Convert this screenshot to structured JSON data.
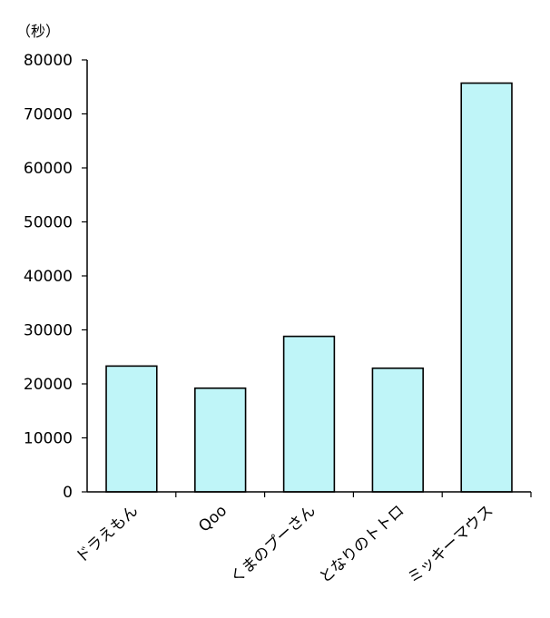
{
  "chart_data": {
    "type": "bar",
    "title": "",
    "xlabel": "",
    "ylabel": "",
    "unit_label": "（秒）",
    "categories": [
      "ドラえもん",
      "Qoo",
      "くまのプーさん",
      "となりのトトロ",
      "ミッキーマウス"
    ],
    "values": [
      23300,
      19200,
      28800,
      22900,
      75700
    ],
    "ylim": [
      0,
      80000
    ],
    "yticks": [
      0,
      10000,
      20000,
      30000,
      40000,
      50000,
      60000,
      70000,
      80000
    ],
    "grid": false,
    "bar_color": "#bff5f8",
    "bar_stroke": "#000000"
  }
}
